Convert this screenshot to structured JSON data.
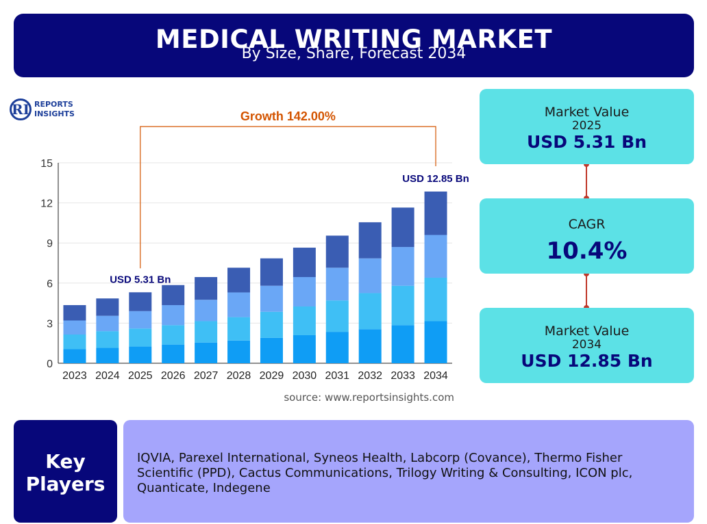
{
  "header": {
    "title": "MEDICAL WRITING MARKET",
    "subtitle": "By Size, Share, Forecast 2034"
  },
  "logo": {
    "line1": "REPORTS",
    "line2": "INSIGHTS",
    "mark": "RI"
  },
  "source_text": "source: www.reportsinsights.com",
  "chart_data": {
    "type": "bar",
    "stacked": true,
    "categories": [
      "2023",
      "2024",
      "2025",
      "2026",
      "2027",
      "2028",
      "2029",
      "2030",
      "2031",
      "2032",
      "2033",
      "2034"
    ],
    "totals": [
      4.35,
      4.85,
      5.31,
      5.85,
      6.45,
      7.15,
      7.85,
      8.65,
      9.55,
      10.55,
      11.65,
      12.85
    ],
    "segments": [
      {
        "color": "#0f9df5",
        "values": [
          1.05,
          1.15,
          1.25,
          1.4,
          1.55,
          1.7,
          1.9,
          2.1,
          2.35,
          2.55,
          2.85,
          3.15
        ]
      },
      {
        "color": "#3fbff5",
        "values": [
          1.1,
          1.25,
          1.35,
          1.45,
          1.6,
          1.75,
          1.95,
          2.15,
          2.35,
          2.7,
          2.95,
          3.25
        ]
      },
      {
        "color": "#6aa7f6",
        "values": [
          1.05,
          1.15,
          1.3,
          1.5,
          1.6,
          1.85,
          1.95,
          2.2,
          2.45,
          2.6,
          2.9,
          3.2
        ]
      },
      {
        "color": "#3a5db3",
        "values": [
          1.15,
          1.3,
          1.41,
          1.5,
          1.7,
          1.85,
          2.05,
          2.2,
          2.4,
          2.7,
          2.95,
          3.25
        ]
      }
    ],
    "ylim": [
      0,
      15
    ],
    "yticks": [
      0,
      3,
      6,
      9,
      12,
      15
    ],
    "grid": true,
    "annotations": {
      "growth_label": "Growth 142.00%",
      "growth_from": "2025",
      "growth_to": "2034",
      "start_label": "USD 5.31 Bn",
      "end_label": "USD 12.85 Bn"
    },
    "xlabel": "",
    "ylabel": ""
  },
  "cards": {
    "value_2025": {
      "label": "Market Value",
      "year": "2025",
      "value": "USD 5.31 Bn"
    },
    "cagr": {
      "label": "CAGR",
      "value": "10.4%"
    },
    "value_2034": {
      "label": "Market Value",
      "year": "2034",
      "value": "USD 12.85 Bn"
    }
  },
  "key_players": {
    "heading_line1": "Key",
    "heading_line2": "Players",
    "list": "IQVIA, Parexel International, Syneos Health, Labcorp (Covance), Thermo Fisher Scientific (PPD), Cactus Communications, Trilogy Writing & Consulting, ICON plc, Quanticate, Indegene"
  },
  "colors": {
    "navy": "#07077a",
    "cyan_card": "#5ce1e6",
    "lavender": "#a5a5fc",
    "growth_orange": "#d35400",
    "connector_red": "#c0392b"
  }
}
